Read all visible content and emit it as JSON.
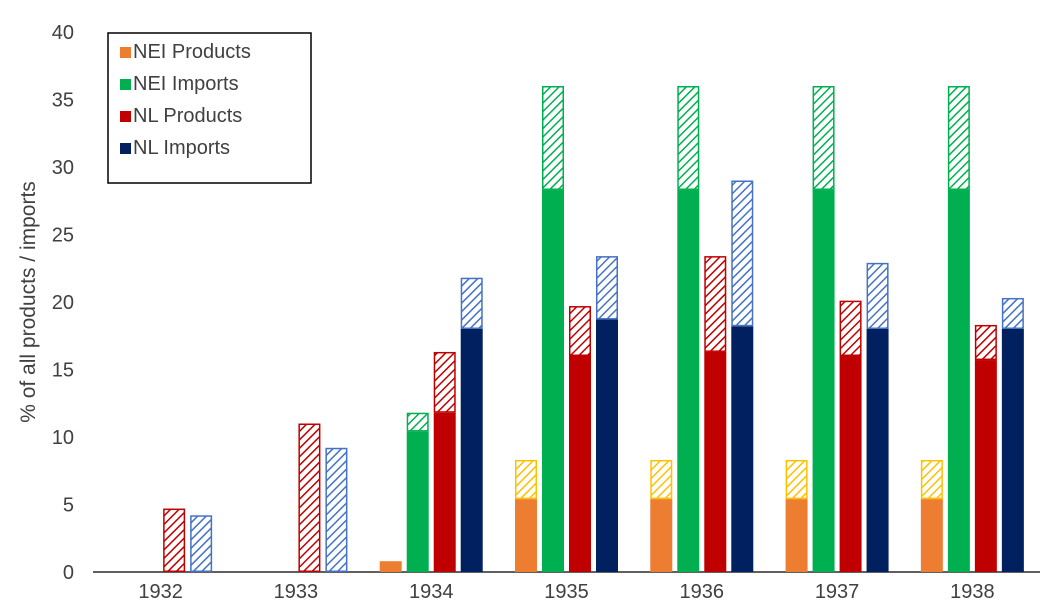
{
  "chart_data": {
    "type": "bar",
    "subtype": "grouped-stacked",
    "title": "",
    "xlabel": "",
    "ylabel": "% of all products / imports",
    "ylim": [
      0,
      40
    ],
    "yticks": [
      0,
      5,
      10,
      15,
      20,
      25,
      30,
      35,
      40
    ],
    "grid": false,
    "legend_position": "top-left",
    "categories": [
      "1932",
      "1933",
      "1934",
      "1935",
      "1936",
      "1937",
      "1938"
    ],
    "series": [
      {
        "name": "NEI Products",
        "color": "#ED7D31",
        "hatch_color": "#FFC000",
        "solid": [
          0,
          0,
          0.8,
          5.4,
          5.4,
          5.4,
          5.4
        ],
        "hatched": [
          0,
          0,
          0.1,
          2.9,
          2.9,
          2.9,
          2.9
        ]
      },
      {
        "name": "NEI Imports",
        "color": "#00B050",
        "hatch_color": "#00B050",
        "solid": [
          0,
          0,
          10.4,
          28.3,
          28.3,
          28.3,
          28.3
        ],
        "hatched": [
          0,
          0,
          1.4,
          7.7,
          7.7,
          7.7,
          7.7
        ]
      },
      {
        "name": "NL Products",
        "color": "#C00000",
        "hatch_color": "#C00000",
        "solid": [
          0,
          0,
          11.8,
          16.0,
          16.3,
          16.0,
          15.7
        ],
        "hatched": [
          4.7,
          11.0,
          4.5,
          3.7,
          7.1,
          4.1,
          2.6
        ]
      },
      {
        "name": "NL Imports",
        "color": "#002060",
        "hatch_color": "#4472C4",
        "solid": [
          0,
          0,
          18.0,
          18.7,
          18.2,
          18.0,
          18.0
        ],
        "hatched": [
          4.2,
          9.2,
          3.8,
          4.7,
          10.8,
          4.9,
          2.3
        ]
      }
    ]
  }
}
